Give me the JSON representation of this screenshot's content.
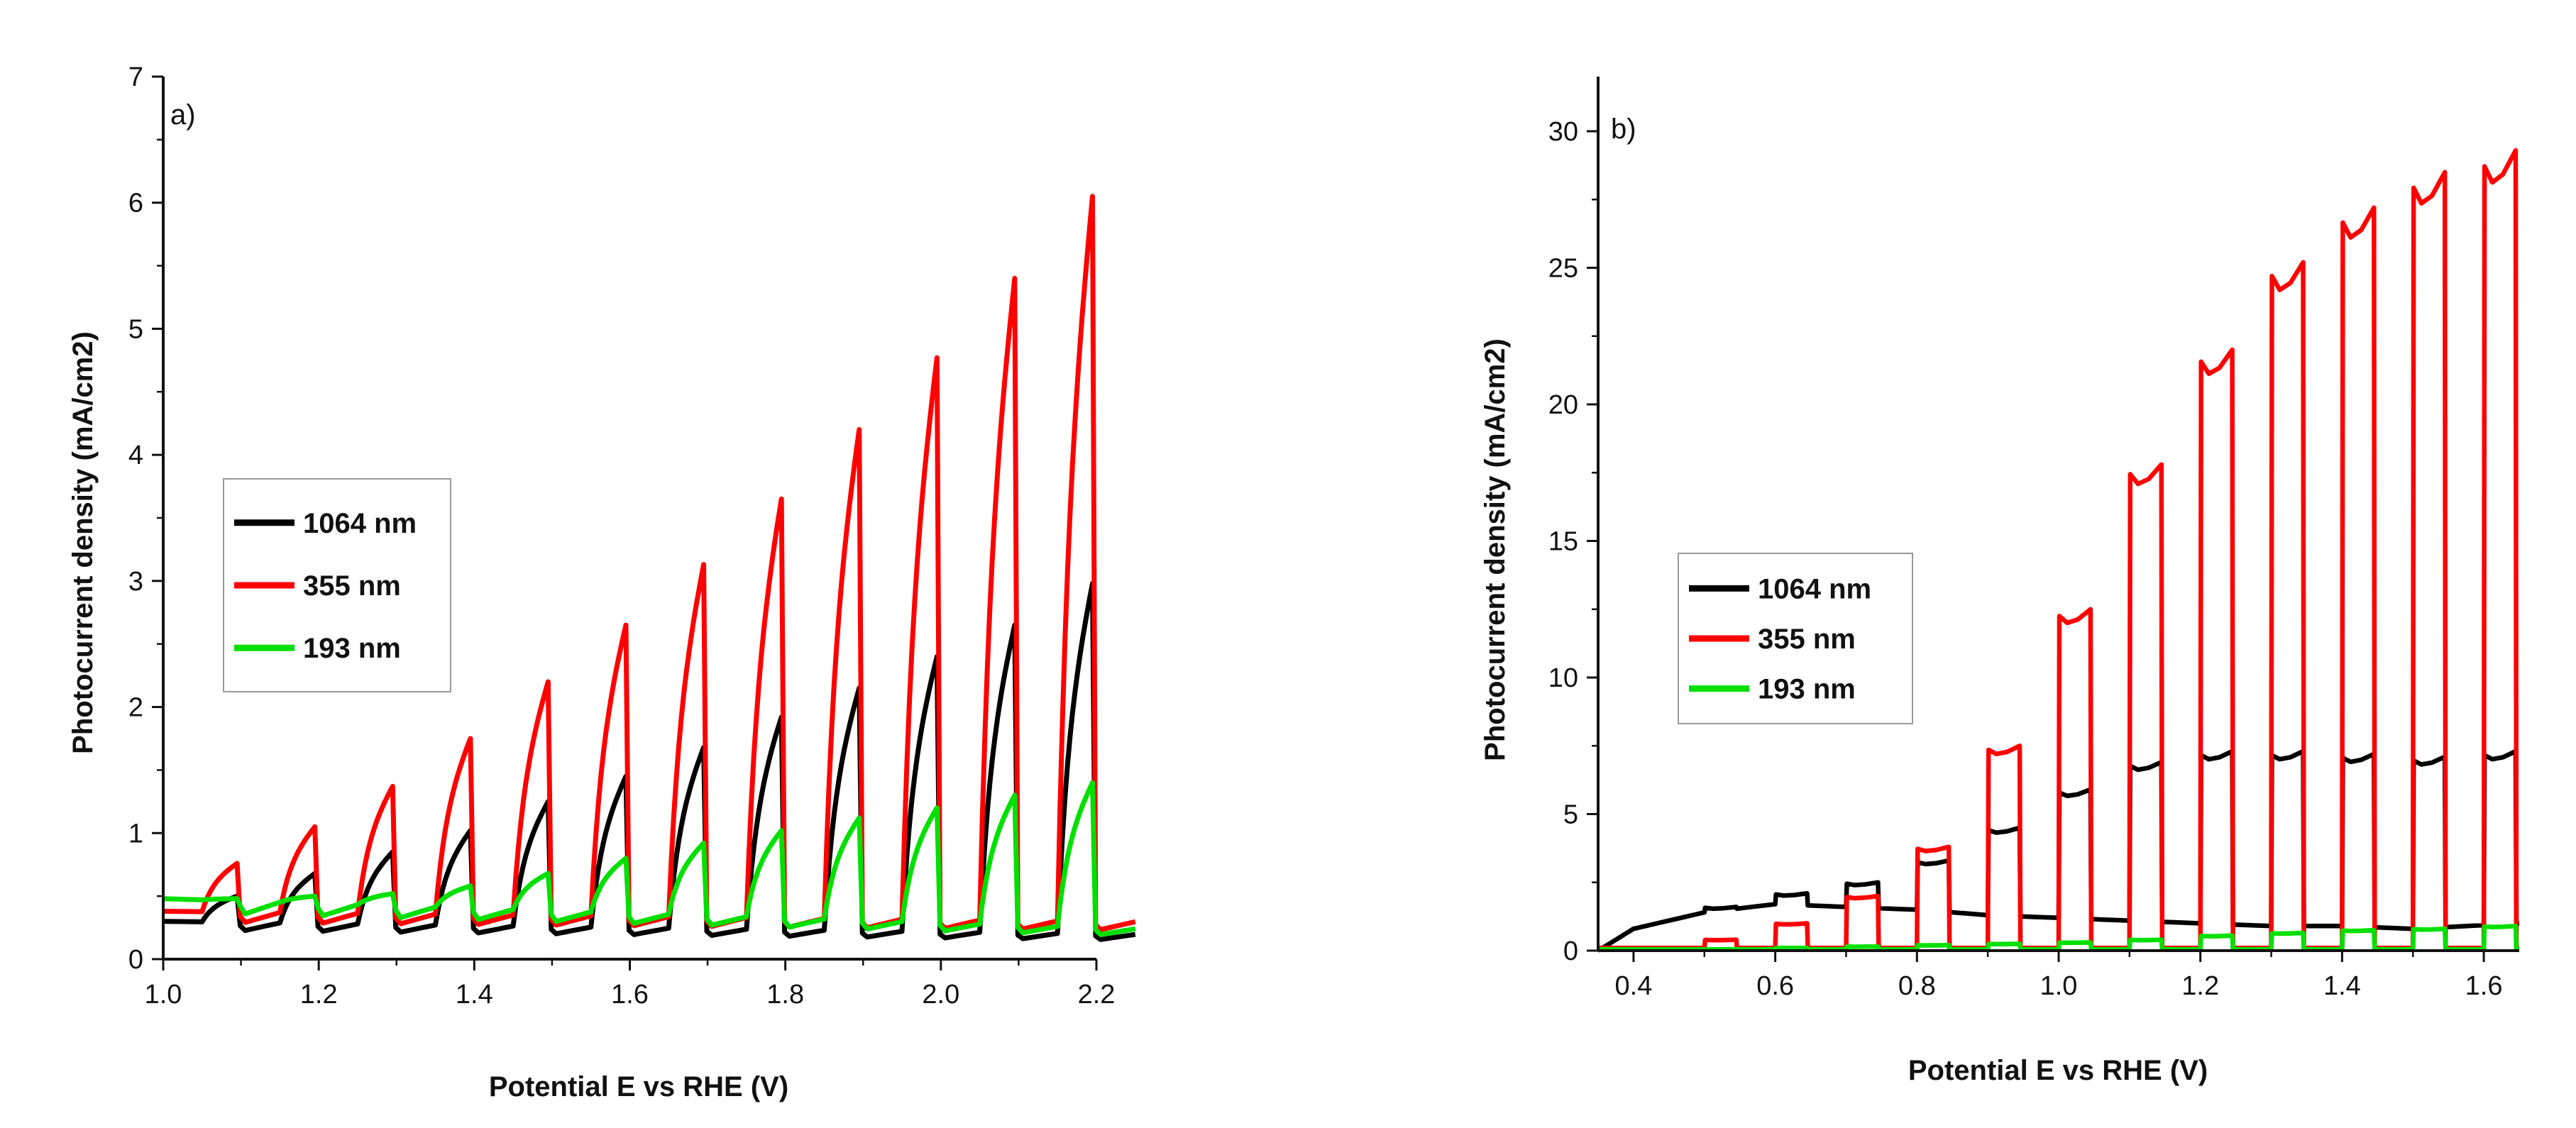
{
  "chart_data": [
    {
      "panel": "a)",
      "type": "line",
      "xlabel": "Potential E vs RHE (V)",
      "ylabel": "Photocurrent density (mA/cm2)",
      "xlim": [
        1.0,
        2.2
      ],
      "ylim": [
        0,
        7
      ],
      "xticks": [
        "1.0",
        "1.2",
        "1.4",
        "1.6",
        "1.8",
        "2.0",
        "2.2"
      ],
      "yticks": [
        "0",
        "1",
        "2",
        "3",
        "4",
        "5",
        "6",
        "7"
      ],
      "legend_position": "middle-left",
      "chopped_light": {
        "start": 1.05,
        "period": 0.1,
        "on_fraction": 0.45
      },
      "series": [
        {
          "name": "1064 nm",
          "color": "#000000",
          "dark_start": 0.3,
          "dark_end": 0.2,
          "on_peaks": [
            0.5,
            0.68,
            0.85,
            1.02,
            1.25,
            1.45,
            1.68,
            1.92,
            2.15,
            2.4,
            2.65,
            2.98
          ]
        },
        {
          "name": "355 nm",
          "color": "#ff0000",
          "dark_start": 0.38,
          "dark_end": 0.3,
          "on_peaks": [
            0.76,
            1.05,
            1.37,
            1.75,
            2.2,
            2.65,
            3.13,
            3.65,
            4.2,
            4.77,
            5.4,
            6.05
          ]
        },
        {
          "name": "193 nm",
          "color": "#00e000",
          "dark_start": 0.48,
          "dark_end": 0.25,
          "on_peaks": [
            0.48,
            0.5,
            0.52,
            0.58,
            0.68,
            0.8,
            0.92,
            1.02,
            1.12,
            1.2,
            1.3,
            1.4
          ]
        }
      ]
    },
    {
      "panel": "b)",
      "type": "line",
      "xlabel": "Potential E vs RHE (V)",
      "ylabel": "Photocurrent density (mA/cm2)",
      "xlim": [
        0.35,
        1.65
      ],
      "ylim": [
        0,
        32
      ],
      "xticks": [
        "0.4",
        "0.6",
        "0.8",
        "1.0",
        "1.2",
        "1.4",
        "1.6"
      ],
      "yticks": [
        "0",
        "5",
        "10",
        "15",
        "20",
        "25",
        "30"
      ],
      "legend_position": "middle-left",
      "chopped_light": {
        "start": 0.5,
        "period": 0.1,
        "on_fraction": 0.45
      },
      "series": [
        {
          "name": "1064 nm",
          "color": "#000000",
          "dark_profile": {
            "x": [
              0.35,
              0.4,
              0.5,
              0.6,
              0.7,
              0.8,
              0.9,
              1.0,
              1.1,
              1.2,
              1.3,
              1.4,
              1.5,
              1.65
            ],
            "y": [
              0.0,
              0.8,
              1.4,
              1.7,
              1.6,
              1.5,
              1.3,
              1.2,
              1.1,
              1.0,
              0.9,
              0.9,
              0.8,
              1.0
            ]
          },
          "on_peaks": [
            1.6,
            2.1,
            2.5,
            3.3,
            4.5,
            5.9,
            6.9,
            7.3,
            7.3,
            7.2,
            7.1,
            7.3
          ]
        },
        {
          "name": "355 nm",
          "color": "#ff0000",
          "dark_level": 0.1,
          "on_peaks": [
            0.4,
            1.0,
            2.0,
            3.8,
            7.5,
            12.5,
            17.8,
            22.0,
            25.2,
            27.2,
            28.5,
            29.3
          ]
        },
        {
          "name": "193 nm",
          "color": "#00e000",
          "dark_level": 0.05,
          "on_peaks": [
            0.05,
            0.1,
            0.15,
            0.2,
            0.25,
            0.3,
            0.4,
            0.55,
            0.65,
            0.75,
            0.8,
            0.9
          ]
        }
      ]
    }
  ]
}
